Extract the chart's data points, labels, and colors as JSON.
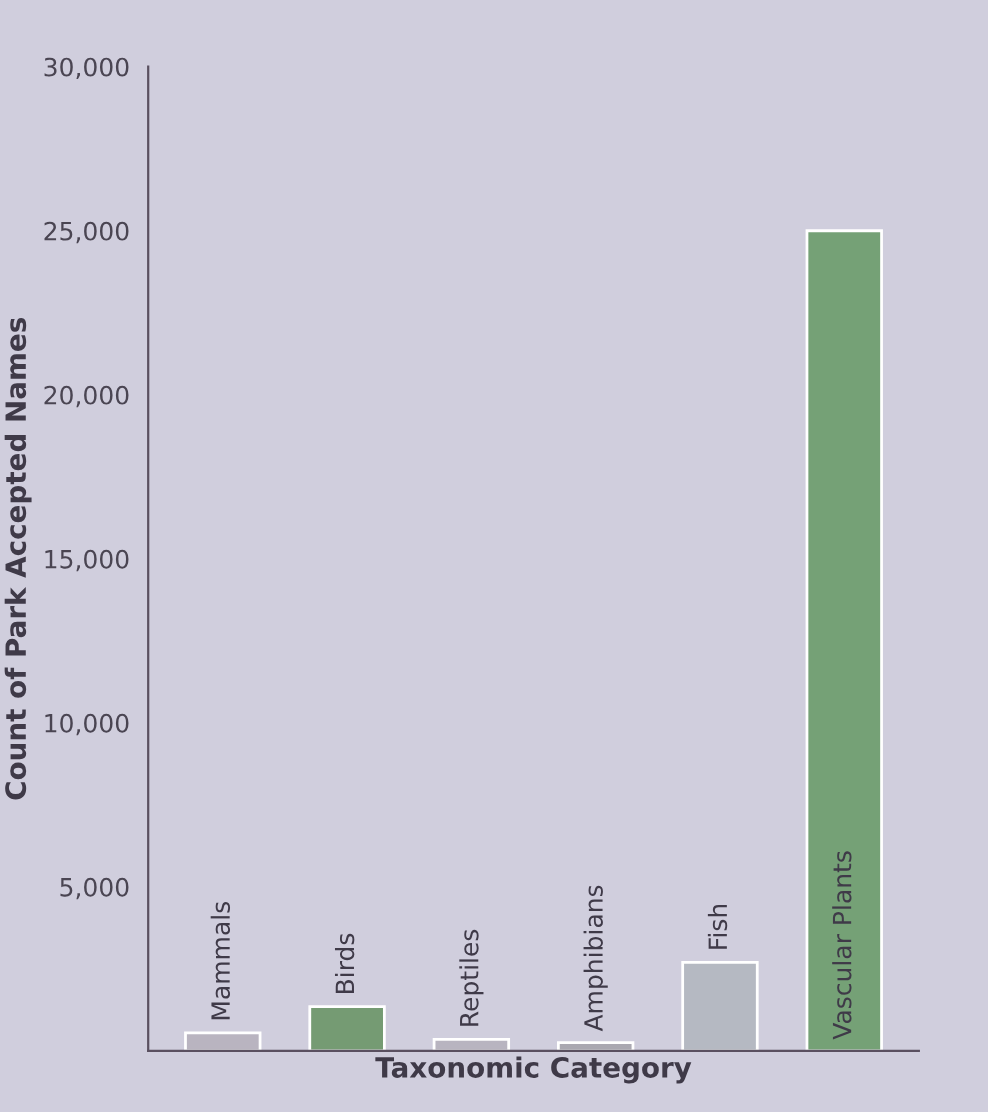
{
  "chart_data": {
    "type": "bar",
    "xlabel": "Taxonomic Category",
    "ylabel": "Count of Park Accepted Names",
    "categories": [
      "Mammals",
      "Birds",
      "Reptiles",
      "Amphibians",
      "Fish",
      "Vascular Plants"
    ],
    "values": [
      550,
      1350,
      350,
      250,
      2700,
      25000
    ],
    "colors": [
      "#b9b2c2",
      "#6fa26c",
      "#b7b2c2",
      "#a9a7b2",
      "#b3b8c4",
      "#6ea86f"
    ],
    "ylim": [
      0,
      30000
    ],
    "yticks": [
      {
        "value": 5000,
        "label": "5,000"
      },
      {
        "value": 10000,
        "label": "10,000"
      },
      {
        "value": 15000,
        "label": "15,000"
      },
      {
        "value": 20000,
        "label": "20,000"
      },
      {
        "value": 25000,
        "label": "25,000"
      },
      {
        "value": 30000,
        "label": "30,000"
      }
    ],
    "grid": false,
    "legend": false
  }
}
